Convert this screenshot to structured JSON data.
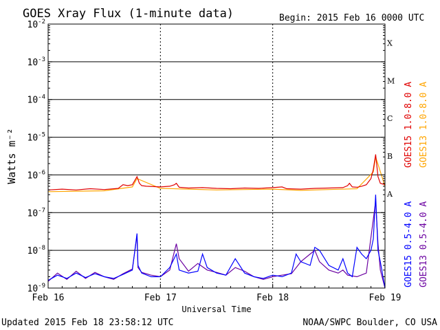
{
  "header": {
    "title": "GOES Xray Flux (1-minute data)",
    "begin": "Begin:  2015 Feb 16 0000 UTC"
  },
  "footer": {
    "updated": "Updated 2015 Feb 18 23:58:12 UTC",
    "credit": "NOAA/SWPC Boulder, CO USA"
  },
  "chart_data": {
    "type": "line",
    "title": "GOES Xray Flux (1-minute data)",
    "xlabel": "Universal Time",
    "ylabel": "Watts m⁻²",
    "yscale": "log",
    "ylim": [
      1e-09,
      0.01
    ],
    "xlim": [
      0,
      72
    ],
    "x_unit": "hours since 2015 Feb 16 00:00 UTC",
    "x_tick_labels": [
      {
        "x": 0,
        "label": "Feb 16"
      },
      {
        "x": 24,
        "label": "Feb 17"
      },
      {
        "x": 48,
        "label": "Feb 18"
      },
      {
        "x": 72,
        "label": "Feb 19"
      }
    ],
    "y_tick_labels": [
      {
        "exp": -9,
        "label": "10",
        "sup": "-9"
      },
      {
        "exp": -8,
        "label": "10",
        "sup": "-8"
      },
      {
        "exp": -7,
        "label": "10",
        "sup": "-7"
      },
      {
        "exp": -6,
        "label": "10",
        "sup": "-6"
      },
      {
        "exp": -5,
        "label": "10",
        "sup": "-5"
      },
      {
        "exp": -4,
        "label": "10",
        "sup": "-4"
      },
      {
        "exp": -3,
        "label": "10",
        "sup": "-3"
      },
      {
        "exp": -2,
        "label": "10",
        "sup": "-2"
      }
    ],
    "flare_classes": [
      {
        "exp": -7,
        "label": "A"
      },
      {
        "exp": -6,
        "label": "B"
      },
      {
        "exp": -5,
        "label": "C"
      },
      {
        "exp": -4,
        "label": "M"
      },
      {
        "exp": -3,
        "label": "X"
      }
    ],
    "grid": true,
    "legend_placement": "right, vertical",
    "series": [
      {
        "name": "GOES15 1.0-8.0 A",
        "color": "#e00000",
        "x": [
          0,
          3,
          6,
          9,
          12,
          15,
          16,
          17,
          18,
          19,
          19.5,
          20,
          21,
          24,
          26,
          27,
          27.4,
          28,
          30,
          33,
          36,
          39,
          42,
          45,
          48,
          50,
          51,
          54,
          57,
          60,
          63,
          64,
          64.4,
          65,
          66,
          67,
          68,
          69,
          69.5,
          70,
          70.5,
          71,
          72
        ],
        "y": [
          4e-07,
          4.2e-07,
          4e-07,
          4.3e-07,
          4.1e-07,
          4.4e-07,
          5.5e-07,
          5.2e-07,
          5.5e-07,
          9e-07,
          6e-07,
          5.2e-07,
          5e-07,
          4.8e-07,
          5e-07,
          5.5e-07,
          6e-07,
          4.7e-07,
          4.5e-07,
          4.6e-07,
          4.4e-07,
          4.3e-07,
          4.5e-07,
          4.4e-07,
          4.6e-07,
          4.8e-07,
          4.3e-07,
          4.2e-07,
          4.4e-07,
          4.5e-07,
          4.6e-07,
          5.2e-07,
          6e-07,
          4.8e-07,
          4.7e-07,
          5e-07,
          5.5e-07,
          8e-07,
          1.4e-06,
          3.5e-06,
          9e-07,
          6e-07,
          5.5e-07
        ]
      },
      {
        "name": "GOES13 1.0-8.0 A",
        "color": "#ffa500",
        "x": [
          0,
          6,
          12,
          18,
          19,
          24,
          30,
          36,
          42,
          48,
          54,
          60,
          66,
          69.5,
          70,
          72
        ],
        "y": [
          3.6e-07,
          3.7e-07,
          3.8e-07,
          4.8e-07,
          8e-07,
          4.4e-07,
          4.2e-07,
          4e-07,
          4.1e-07,
          4.2e-07,
          3.9e-07,
          4.1e-07,
          4.3e-07,
          1.2e-06,
          3e-06,
          5e-07
        ]
      },
      {
        "name": "GOES15 0.5-4.0 A",
        "color": "#0000ff",
        "x": [
          0,
          2,
          4,
          6,
          8,
          10,
          12,
          14,
          16,
          18,
          19,
          19.2,
          20,
          22,
          24,
          26,
          27.4,
          28,
          30,
          32,
          33,
          34,
          36,
          38,
          40,
          42,
          44,
          46,
          48,
          50,
          52,
          53,
          54,
          56,
          57,
          58,
          60,
          62,
          63,
          64,
          65,
          66,
          67,
          68,
          69,
          69.5,
          70,
          70.5,
          71,
          72
        ],
        "y": [
          1.6e-09,
          2.2e-09,
          1.8e-09,
          2.5e-09,
          1.9e-09,
          2.4e-09,
          2e-09,
          1.8e-09,
          2.3e-09,
          3e-09,
          2.8e-08,
          4e-09,
          2.5e-09,
          2e-09,
          2e-09,
          3.5e-09,
          8e-09,
          3e-09,
          2.5e-09,
          2.8e-09,
          8e-09,
          3.5e-09,
          2.5e-09,
          2.2e-09,
          6e-09,
          2.5e-09,
          2e-09,
          1.8e-09,
          2.2e-09,
          2e-09,
          2.5e-09,
          8e-09,
          5e-09,
          4e-09,
          1.2e-08,
          1e-08,
          4e-09,
          3e-09,
          6e-09,
          2.5e-09,
          2e-09,
          1.2e-08,
          8e-09,
          6e-09,
          1e-08,
          2e-08,
          3e-07,
          1e-08,
          5e-09,
          1e-09
        ]
      },
      {
        "name": "GOES13 0.5-4.0 A",
        "color": "#6a00a0",
        "x": [
          0,
          2,
          4,
          6,
          8,
          10,
          12,
          14,
          16,
          18,
          19,
          19.2,
          20,
          22,
          24,
          26,
          27.4,
          28,
          30,
          32,
          34,
          36,
          38,
          40,
          42,
          44,
          46,
          48,
          50,
          52,
          54,
          56,
          57,
          58,
          60,
          62,
          63,
          64,
          66,
          68,
          70,
          70.5,
          71,
          72
        ],
        "y": [
          1.5e-09,
          2.5e-09,
          1.7e-09,
          2.8e-09,
          1.8e-09,
          2.6e-09,
          2e-09,
          1.7e-09,
          2.4e-09,
          3.2e-09,
          2.5e-08,
          3.5e-09,
          2.6e-09,
          2.2e-09,
          2e-09,
          3e-09,
          1.5e-08,
          6e-09,
          2.8e-09,
          4.5e-09,
          3e-09,
          2.6e-09,
          2.2e-09,
          3.5e-09,
          2.8e-09,
          2e-09,
          1.7e-09,
          2e-09,
          2.2e-09,
          2.4e-09,
          5e-09,
          8e-09,
          1e-08,
          5e-09,
          3e-09,
          2.5e-09,
          3e-09,
          2.2e-09,
          2e-09,
          2.5e-09,
          2e-07,
          1.5e-08,
          3e-09,
          1e-09
        ]
      }
    ]
  }
}
